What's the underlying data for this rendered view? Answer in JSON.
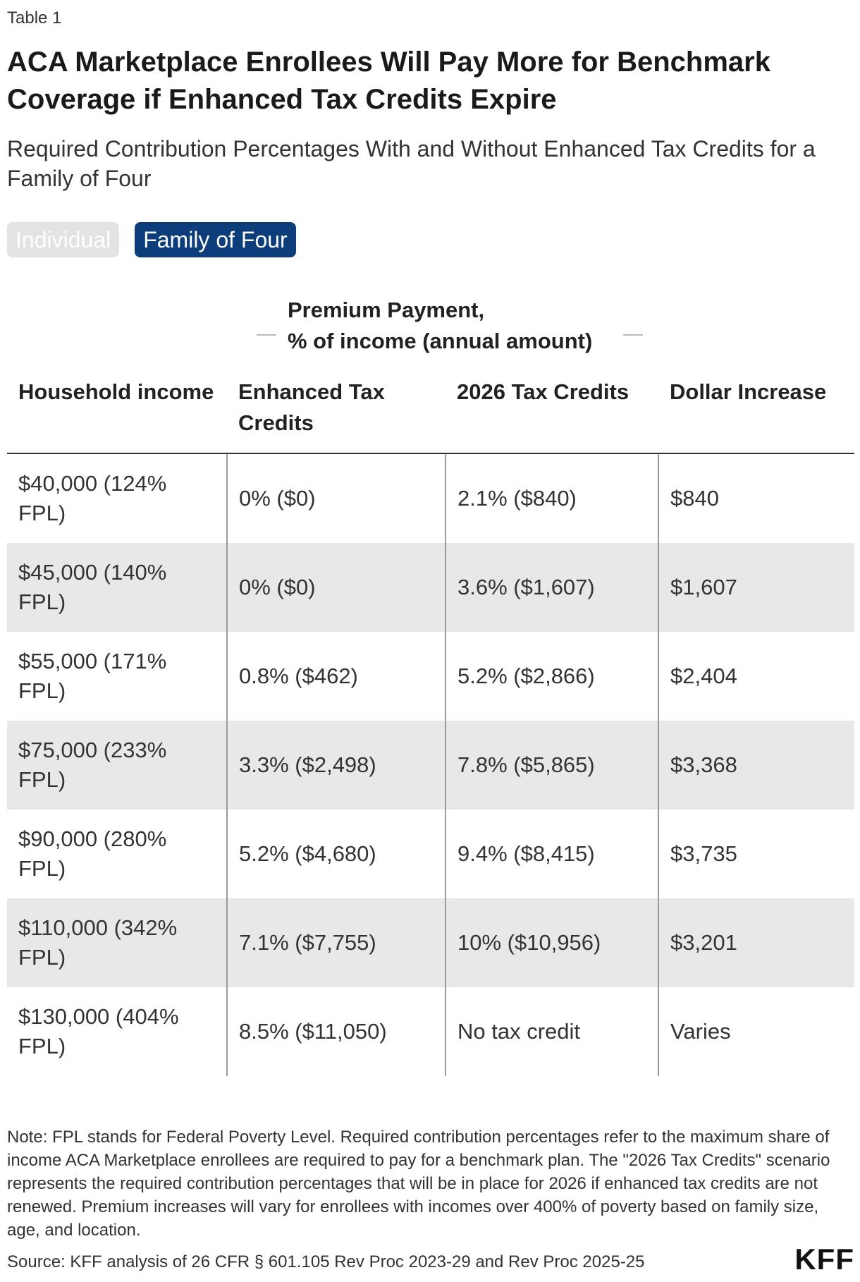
{
  "table_label": "Table 1",
  "title": "ACA Marketplace Enrollees Will Pay More for Benchmark Coverage if Enhanced Tax Credits Expire",
  "subtitle": "Required Contribution Percentages With and Without Enhanced Tax Credits for a Family of Four",
  "toggles": {
    "individual": "Individual",
    "family": "Family of Four"
  },
  "group_header": {
    "line1": "Premium Payment,",
    "line2": "% of income (annual amount)"
  },
  "columns": [
    "Household income",
    "Enhanced Tax Credits",
    "2026 Tax Credits",
    "Dollar Increase"
  ],
  "rows": [
    {
      "income": " $40,000 (124% FPL)",
      "enhanced": "0% ($0)",
      "tax2026": "2.1% ($840)",
      "increase": "$840"
    },
    {
      "income": " $45,000 (140% FPL)",
      "enhanced": "0% ($0)",
      "tax2026": "3.6% ($1,607)",
      "increase": "$1,607"
    },
    {
      "income": " $55,000 (171% FPL)",
      "enhanced": "0.8% ($462)",
      "tax2026": "5.2% ($2,866)",
      "increase": "$2,404"
    },
    {
      "income": " $75,000 (233% FPL)",
      "enhanced": "3.3% ($2,498)",
      "tax2026": "7.8% ($5,865)",
      "increase": "$3,368"
    },
    {
      "income": " $90,000 (280% FPL)",
      "enhanced": "5.2% ($4,680)",
      "tax2026": "9.4% ($8,415)",
      "increase": "$3,735"
    },
    {
      "income": "$110,000 (342% FPL)",
      "enhanced": "7.1% ($7,755)",
      "tax2026": "10% ($10,956)",
      "increase": "$3,201"
    },
    {
      "income": "$130,000 (404% FPL)",
      "enhanced": "8.5% ($11,050)",
      "tax2026": "No tax credit",
      "increase": "Varies"
    }
  ],
  "note": "Note: FPL stands for Federal Poverty Level. Required contribution percentages refer to the maximum share of income ACA Marketplace enrollees are required to pay for a benchmark plan. The \"2026 Tax Credits\" scenario represents the required contribution percentages that will be in place for 2026 if enhanced tax credits are not renewed. Premium increases will vary for enrollees with incomes over 400% of poverty based on family size, age, and location.",
  "source": "Source: KFF analysis of 26 CFR § 601.105 Rev Proc 2023-29 and Rev Proc 2025-25",
  "logo": "KFF"
}
